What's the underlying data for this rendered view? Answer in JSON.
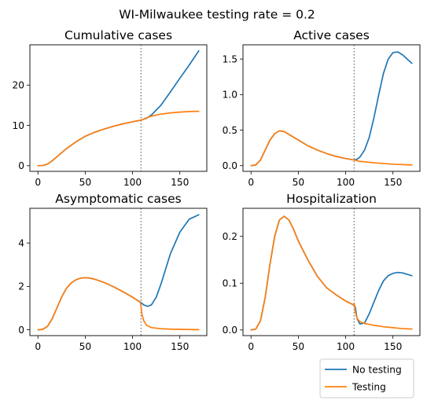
{
  "figure": {
    "suptitle": "WI-Milwaukee testing rate = 0.2"
  },
  "legend": {
    "placement": "bottom-right",
    "entries": [
      {
        "label": "No testing",
        "color": "#1f77b4"
      },
      {
        "label": "Testing",
        "color": "#ff7f0e"
      }
    ]
  },
  "chart_data": [
    {
      "type": "line",
      "title": "Cumulative cases",
      "xlabel": "",
      "ylabel": "",
      "xlim": [
        -8.5,
        178.5
      ],
      "ylim": [
        -1.4,
        30
      ],
      "xticks": [
        0,
        50,
        100,
        150
      ],
      "yticks": [
        0,
        10,
        20
      ],
      "intervention_x": 109,
      "grid": false,
      "series": [
        {
          "name": "No testing",
          "color": "#1f77b4",
          "x": [
            0,
            5,
            10,
            15,
            20,
            30,
            40,
            50,
            60,
            70,
            80,
            90,
            100,
            109,
            115,
            120,
            130,
            140,
            150,
            160,
            170
          ],
          "y": [
            0,
            0.05,
            0.4,
            1.2,
            2.2,
            4.2,
            5.9,
            7.3,
            8.3,
            9.1,
            9.8,
            10.4,
            10.9,
            11.3,
            11.8,
            12.6,
            15.0,
            18.3,
            21.7,
            25.0,
            28.5
          ]
        },
        {
          "name": "Testing",
          "color": "#ff7f0e",
          "x": [
            0,
            5,
            10,
            15,
            20,
            30,
            40,
            50,
            60,
            70,
            80,
            90,
            100,
            109,
            115,
            120,
            130,
            140,
            150,
            160,
            170
          ],
          "y": [
            0,
            0.05,
            0.4,
            1.2,
            2.2,
            4.2,
            5.9,
            7.3,
            8.3,
            9.1,
            9.8,
            10.4,
            10.9,
            11.3,
            11.9,
            12.3,
            12.8,
            13.1,
            13.3,
            13.45,
            13.5
          ]
        }
      ]
    },
    {
      "type": "line",
      "title": "Active cases",
      "xlabel": "",
      "ylabel": "",
      "xlim": [
        -8.5,
        178.5
      ],
      "ylim": [
        -0.08,
        1.7
      ],
      "xticks": [
        0,
        50,
        100,
        150
      ],
      "yticks": [
        0.0,
        0.5,
        1.0,
        1.5
      ],
      "ytick_labels": [
        "0.0",
        "0.5",
        "1.0",
        "1.5"
      ],
      "intervention_x": 109,
      "grid": false,
      "series": [
        {
          "name": "No testing",
          "color": "#1f77b4",
          "x": [
            0,
            5,
            10,
            15,
            20,
            25,
            30,
            35,
            40,
            50,
            60,
            70,
            80,
            90,
            100,
            109,
            112,
            115,
            120,
            125,
            130,
            135,
            140,
            145,
            150,
            155,
            160,
            165,
            170
          ],
          "y": [
            0,
            0.01,
            0.08,
            0.22,
            0.36,
            0.45,
            0.49,
            0.48,
            0.44,
            0.36,
            0.28,
            0.22,
            0.17,
            0.13,
            0.1,
            0.08,
            0.09,
            0.12,
            0.22,
            0.4,
            0.68,
            1.0,
            1.3,
            1.5,
            1.59,
            1.6,
            1.56,
            1.5,
            1.44
          ]
        },
        {
          "name": "Testing",
          "color": "#ff7f0e",
          "x": [
            0,
            5,
            10,
            15,
            20,
            25,
            30,
            35,
            40,
            50,
            60,
            70,
            80,
            90,
            100,
            109,
            112,
            115,
            120,
            130,
            140,
            150,
            160,
            170
          ],
          "y": [
            0,
            0.01,
            0.08,
            0.22,
            0.36,
            0.45,
            0.49,
            0.48,
            0.44,
            0.36,
            0.28,
            0.22,
            0.17,
            0.13,
            0.1,
            0.08,
            0.07,
            0.06,
            0.055,
            0.04,
            0.03,
            0.02,
            0.015,
            0.01
          ]
        }
      ]
    },
    {
      "type": "line",
      "title": "Asymptomatic cases",
      "xlabel": "",
      "ylabel": "",
      "xlim": [
        -8.5,
        178.5
      ],
      "ylim": [
        -0.27,
        5.6
      ],
      "xticks": [
        0,
        50,
        100,
        150
      ],
      "yticks": [
        0,
        2,
        4
      ],
      "intervention_x": 109,
      "grid": false,
      "series": [
        {
          "name": "No testing",
          "color": "#1f77b4",
          "x": [
            0,
            5,
            10,
            15,
            20,
            25,
            30,
            35,
            40,
            45,
            50,
            55,
            60,
            70,
            80,
            90,
            100,
            108,
            112,
            116,
            120,
            125,
            130,
            135,
            140,
            150,
            160,
            170
          ],
          "y": [
            0,
            0.02,
            0.15,
            0.5,
            1.0,
            1.5,
            1.9,
            2.15,
            2.3,
            2.38,
            2.4,
            2.38,
            2.33,
            2.18,
            1.98,
            1.75,
            1.5,
            1.28,
            1.14,
            1.08,
            1.15,
            1.5,
            2.1,
            2.8,
            3.5,
            4.5,
            5.1,
            5.3
          ]
        },
        {
          "name": "Testing",
          "color": "#ff7f0e",
          "x": [
            0,
            5,
            10,
            15,
            20,
            25,
            30,
            35,
            40,
            45,
            50,
            55,
            60,
            70,
            80,
            90,
            100,
            108,
            109,
            110,
            112,
            115,
            120,
            130,
            140,
            150,
            160,
            170
          ],
          "y": [
            0,
            0.02,
            0.15,
            0.5,
            1.0,
            1.5,
            1.9,
            2.15,
            2.3,
            2.38,
            2.4,
            2.38,
            2.33,
            2.18,
            1.98,
            1.75,
            1.5,
            1.28,
            1.1,
            0.7,
            0.4,
            0.2,
            0.1,
            0.05,
            0.03,
            0.02,
            0.01,
            0.005
          ]
        }
      ]
    },
    {
      "type": "line",
      "title": "Hospitalization",
      "xlabel": "",
      "ylabel": "",
      "xlim": [
        -8.5,
        178.5
      ],
      "ylim": [
        -0.012,
        0.26
      ],
      "xticks": [
        0,
        50,
        100,
        150
      ],
      "yticks": [
        0.0,
        0.1,
        0.2
      ],
      "ytick_labels": [
        "0.0",
        "0.1",
        "0.2"
      ],
      "intervention_x": 109,
      "grid": false,
      "series": [
        {
          "name": "No testing",
          "color": "#1f77b4",
          "x": [
            0,
            5,
            10,
            15,
            20,
            25,
            30,
            35,
            40,
            45,
            50,
            60,
            70,
            80,
            90,
            100,
            108,
            110,
            112,
            115,
            120,
            125,
            130,
            135,
            140,
            145,
            150,
            155,
            160,
            165,
            170
          ],
          "y": [
            0,
            0.002,
            0.02,
            0.07,
            0.14,
            0.2,
            0.235,
            0.243,
            0.235,
            0.215,
            0.19,
            0.15,
            0.115,
            0.09,
            0.075,
            0.062,
            0.054,
            0.05,
            0.025,
            0.013,
            0.015,
            0.035,
            0.06,
            0.085,
            0.105,
            0.116,
            0.121,
            0.123,
            0.122,
            0.119,
            0.116
          ]
        },
        {
          "name": "Testing",
          "color": "#ff7f0e",
          "x": [
            0,
            5,
            10,
            15,
            20,
            25,
            30,
            35,
            40,
            45,
            50,
            60,
            70,
            80,
            90,
            100,
            108,
            109,
            110,
            112,
            115,
            120,
            130,
            140,
            150,
            160,
            170
          ],
          "y": [
            0,
            0.002,
            0.02,
            0.07,
            0.14,
            0.2,
            0.235,
            0.243,
            0.235,
            0.215,
            0.19,
            0.15,
            0.115,
            0.09,
            0.075,
            0.062,
            0.054,
            0.056,
            0.04,
            0.025,
            0.018,
            0.014,
            0.01,
            0.007,
            0.005,
            0.003,
            0.002
          ]
        }
      ]
    }
  ]
}
